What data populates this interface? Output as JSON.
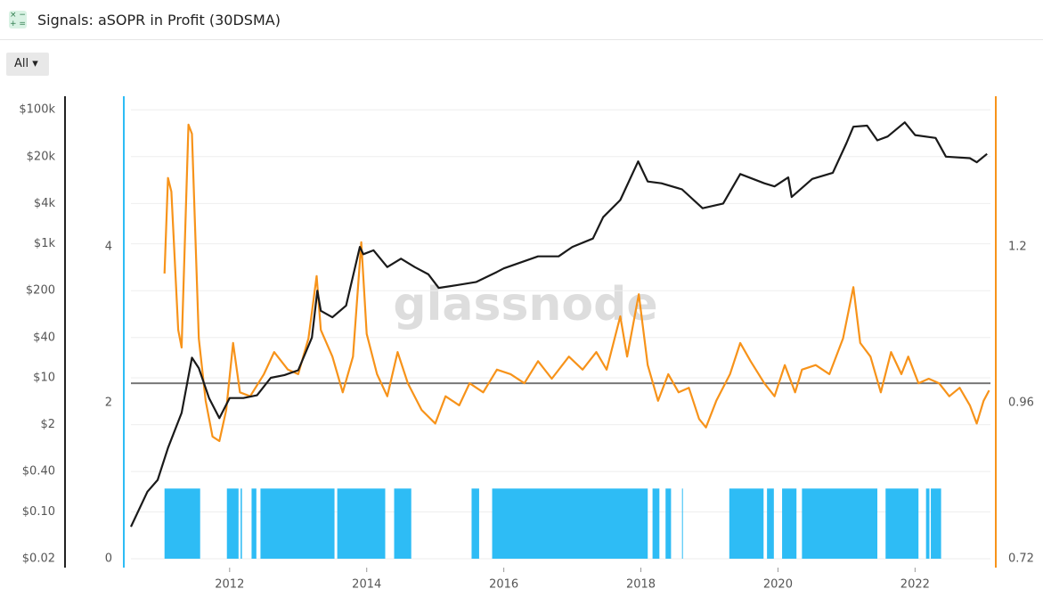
{
  "header": {
    "title": "Signals: aSOPR in Profit (30DSMA)",
    "range_button": "All"
  },
  "chart_data": {
    "type": "line",
    "watermark": "glassnode",
    "xlim": [
      2010.56,
      2023.1
    ],
    "xticks": [
      2012,
      2014,
      2016,
      2018,
      2020,
      2022
    ],
    "ylim": [
      0.02,
      150000
    ],
    "ylog": true,
    "yticks": [
      {
        "value": 0.02,
        "label": "$0.02"
      },
      {
        "value": 0.1,
        "label": "$0.10"
      },
      {
        "value": 0.4,
        "label": "$0.40"
      },
      {
        "value": 2,
        "label": "$2"
      },
      {
        "value": 10,
        "label": "$10"
      },
      {
        "value": 40,
        "label": "$40"
      },
      {
        "value": 200,
        "label": "$200"
      },
      {
        "value": 1000,
        "label": "$1k"
      },
      {
        "value": 4000,
        "label": "$4k"
      },
      {
        "value": 20000,
        "label": "$20k"
      },
      {
        "value": 100000,
        "label": "$100k"
      }
    ],
    "grid": true,
    "signal_ylim": [
      0,
      5.91
    ],
    "signal_yticks": [
      0,
      2,
      4
    ],
    "signal_axis_color": "#2ebcf5",
    "y2lim": [
      0.72,
      1.429
    ],
    "y2ticks": [
      0.72,
      0.96,
      1.2
    ],
    "y2_axis_color": "#f7931a",
    "threshold": {
      "value": 0.99,
      "axis": "y2",
      "color": "#777777"
    },
    "series": [
      {
        "color": "#1a1a1a",
        "axis": "y",
        "x": [
          2010.56,
          2010.8,
          2010.95,
          2011.1,
          2011.3,
          2011.45,
          2011.55,
          2011.7,
          2011.85,
          2012.0,
          2012.2,
          2012.4,
          2012.6,
          2012.8,
          2013.0,
          2013.2,
          2013.28,
          2013.33,
          2013.5,
          2013.7,
          2013.9,
          2013.95,
          2014.1,
          2014.3,
          2014.5,
          2014.7,
          2014.9,
          2015.05,
          2015.3,
          2015.6,
          2015.9,
          2016.0,
          2016.5,
          2016.8,
          2017.0,
          2017.3,
          2017.45,
          2017.7,
          2017.96,
          2018.1,
          2018.3,
          2018.6,
          2018.9,
          2019.2,
          2019.45,
          2019.8,
          2019.95,
          2020.15,
          2020.2,
          2020.5,
          2020.8,
          2021.0,
          2021.1,
          2021.3,
          2021.45,
          2021.6,
          2021.85,
          2022.0,
          2022.3,
          2022.45,
          2022.8,
          2022.9,
          2023.05
        ],
        "values": [
          0.06,
          0.2,
          0.3,
          0.9,
          3,
          20,
          14,
          5,
          2.5,
          5,
          5,
          5.5,
          10,
          11,
          13,
          40,
          200,
          100,
          80,
          120,
          900,
          700,
          800,
          450,
          600,
          450,
          350,
          220,
          240,
          270,
          380,
          430,
          650,
          650,
          900,
          1200,
          2500,
          4500,
          17000,
          8500,
          8000,
          6500,
          3400,
          4000,
          11000,
          8000,
          7200,
          9800,
          5000,
          9300,
          11500,
          32000,
          56000,
          58000,
          35000,
          40000,
          65000,
          42000,
          38000,
          20000,
          19000,
          16500,
          22000
        ]
      },
      {
        "color": "#f7931a",
        "axis": "y2",
        "x": [
          2011.05,
          2011.1,
          2011.15,
          2011.25,
          2011.3,
          2011.4,
          2011.45,
          2011.55,
          2011.65,
          2011.75,
          2011.85,
          2011.95,
          2012.05,
          2012.15,
          2012.3,
          2012.5,
          2012.65,
          2012.85,
          2013.0,
          2013.15,
          2013.27,
          2013.33,
          2013.5,
          2013.65,
          2013.8,
          2013.92,
          2014.0,
          2014.15,
          2014.3,
          2014.45,
          2014.6,
          2014.8,
          2015.0,
          2015.15,
          2015.35,
          2015.5,
          2015.7,
          2015.9,
          2016.1,
          2016.3,
          2016.5,
          2016.7,
          2016.95,
          2017.15,
          2017.35,
          2017.5,
          2017.7,
          2017.8,
          2017.97,
          2018.1,
          2018.25,
          2018.4,
          2018.55,
          2018.7,
          2018.85,
          2018.95,
          2019.1,
          2019.3,
          2019.45,
          2019.6,
          2019.8,
          2019.95,
          2020.1,
          2020.25,
          2020.35,
          2020.55,
          2020.75,
          2020.95,
          2021.1,
          2021.2,
          2021.35,
          2021.5,
          2021.65,
          2021.8,
          2021.9,
          2022.05,
          2022.2,
          2022.35,
          2022.5,
          2022.65,
          2022.8,
          2022.9,
          2023.0,
          2023.08
        ],
        "values": [
          1.159,
          1.306,
          1.285,
          1.072,
          1.045,
          1.388,
          1.374,
          1.059,
          0.963,
          0.908,
          0.901,
          0.949,
          1.052,
          0.976,
          0.97,
          1.004,
          1.038,
          1.011,
          1.004,
          1.059,
          1.155,
          1.072,
          1.031,
          0.976,
          1.031,
          1.207,
          1.066,
          1.004,
          0.97,
          1.038,
          0.99,
          0.949,
          0.928,
          0.97,
          0.956,
          0.99,
          0.976,
          1.011,
          1.004,
          0.99,
          1.024,
          0.997,
          1.031,
          1.011,
          1.038,
          1.011,
          1.093,
          1.031,
          1.127,
          1.018,
          0.963,
          1.004,
          0.976,
          0.983,
          0.935,
          0.922,
          0.963,
          1.004,
          1.052,
          1.024,
          0.99,
          0.97,
          1.018,
          0.976,
          1.011,
          1.018,
          1.004,
          1.059,
          1.138,
          1.052,
          1.031,
          0.976,
          1.038,
          1.004,
          1.031,
          0.99,
          0.997,
          0.99,
          0.97,
          0.983,
          0.956,
          0.928,
          0.963,
          0.979
        ]
      }
    ],
    "signal": {
      "color": "#2ebcf5",
      "axis": "signal",
      "x_start": [
        2011.05,
        2011.96,
        2012.16,
        2012.32,
        2012.45,
        2013.57,
        2014.4,
        2015.53,
        2015.83,
        2018.17,
        2018.36,
        2018.6,
        2019.29,
        2019.84,
        2020.06,
        2020.35,
        2021.57,
        2022.16,
        2022.23
      ],
      "x_end": [
        2011.57,
        2012.13,
        2012.18,
        2012.39,
        2013.53,
        2014.27,
        2014.65,
        2015.64,
        2018.1,
        2018.27,
        2018.44,
        2018.61,
        2019.79,
        2019.94,
        2020.27,
        2021.45,
        2022.05,
        2022.21,
        2022.38
      ],
      "values": [
        0.9,
        0.9,
        0.9,
        0.9,
        0.9,
        0.9,
        0.9,
        0.9,
        0.9,
        0.9,
        0.9,
        0.9,
        0.9,
        0.9,
        0.9,
        0.9,
        0.9,
        0.9,
        0.9
      ]
    }
  }
}
